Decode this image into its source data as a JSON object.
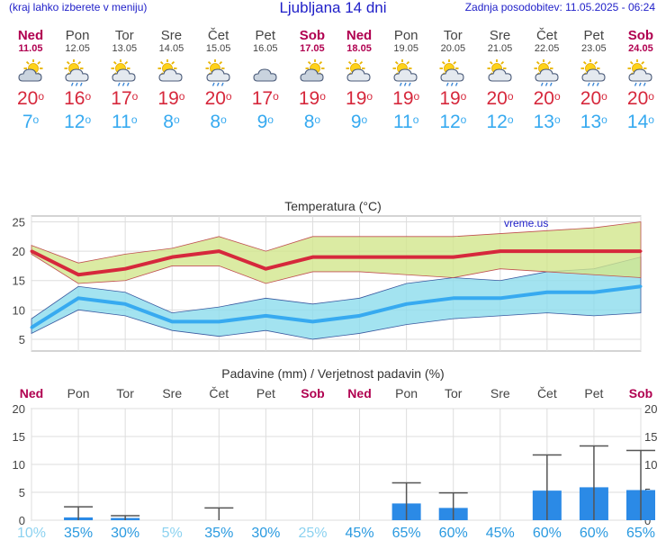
{
  "header": {
    "menu_hint": "(kraj lahko izberete v meniju)",
    "title": "Ljubljana 14 dni",
    "updated": "Zadnja posodobitev: 11.05.2025 - 06:24"
  },
  "colors": {
    "weekend": "#b00050",
    "max_temp": "#d6283c",
    "min_temp": "#37aaf0",
    "bar": "#2b8ae6",
    "max_band": "#d2e68c",
    "min_band": "#8cdcec"
  },
  "days": [
    {
      "name": "Ned",
      "date": "11.05",
      "weekend": true,
      "icon": "partly-cloudy-icon",
      "tmax": "20",
      "tmin": "7"
    },
    {
      "name": "Pon",
      "date": "12.05",
      "weekend": false,
      "icon": "sun-cloud-rain-icon",
      "tmax": "16",
      "tmin": "12"
    },
    {
      "name": "Tor",
      "date": "13.05",
      "weekend": false,
      "icon": "sun-cloud-rain-icon",
      "tmax": "17",
      "tmin": "11"
    },
    {
      "name": "Sre",
      "date": "14.05",
      "weekend": false,
      "icon": "sun-cloud-icon",
      "tmax": "19",
      "tmin": "8"
    },
    {
      "name": "Čet",
      "date": "15.05",
      "weekend": false,
      "icon": "sun-cloud-rain-icon",
      "tmax": "20",
      "tmin": "8"
    },
    {
      "name": "Pet",
      "date": "16.05",
      "weekend": false,
      "icon": "cloudy-icon",
      "tmax": "17",
      "tmin": "9"
    },
    {
      "name": "Sob",
      "date": "17.05",
      "weekend": true,
      "icon": "partly-cloudy-icon",
      "tmax": "19",
      "tmin": "8"
    },
    {
      "name": "Ned",
      "date": "18.05",
      "weekend": true,
      "icon": "sun-cloud-icon",
      "tmax": "19",
      "tmin": "9"
    },
    {
      "name": "Pon",
      "date": "19.05",
      "weekend": false,
      "icon": "sun-cloud-rain-icon",
      "tmax": "19",
      "tmin": "11"
    },
    {
      "name": "Tor",
      "date": "20.05",
      "weekend": false,
      "icon": "sun-cloud-rain-icon",
      "tmax": "19",
      "tmin": "12"
    },
    {
      "name": "Sre",
      "date": "21.05",
      "weekend": false,
      "icon": "sun-cloud-icon",
      "tmax": "20",
      "tmin": "12"
    },
    {
      "name": "Čet",
      "date": "22.05",
      "weekend": false,
      "icon": "sun-cloud-rain-icon",
      "tmax": "20",
      "tmin": "13"
    },
    {
      "name": "Pet",
      "date": "23.05",
      "weekend": false,
      "icon": "sun-cloud-rain-icon",
      "tmax": "20",
      "tmin": "13"
    },
    {
      "name": "Sob",
      "date": "24.05",
      "weekend": true,
      "icon": "sun-cloud-rain-icon",
      "tmax": "20",
      "tmin": "14"
    }
  ],
  "degree_symbol": "o",
  "chart_data": [
    {
      "type": "line",
      "title": "Temperatura (°C)",
      "watermark": "vreme.us",
      "ylim": [
        3,
        26
      ],
      "yticks": [
        5,
        10,
        15,
        20,
        25
      ],
      "x": [
        "11.05",
        "12.05",
        "13.05",
        "14.05",
        "15.05",
        "16.05",
        "17.05",
        "18.05",
        "19.05",
        "20.05",
        "21.05",
        "22.05",
        "23.05",
        "24.05"
      ],
      "series": [
        {
          "name": "max",
          "role": "max",
          "values": [
            20,
            16,
            17,
            19,
            20,
            17,
            19,
            19,
            19,
            19,
            20,
            20,
            20,
            20
          ],
          "band_high": [
            21,
            18,
            19.5,
            20.5,
            22.5,
            20,
            22.5,
            22.5,
            22.5,
            22.5,
            23,
            23.5,
            24,
            25
          ],
          "band_low": [
            19.5,
            14.5,
            15,
            17.5,
            17.5,
            14.5,
            16.5,
            16.5,
            16,
            15.5,
            17,
            16.5,
            16,
            15.5
          ]
        },
        {
          "name": "min",
          "role": "min",
          "values": [
            7,
            12,
            11,
            8,
            8,
            9,
            8,
            9,
            11,
            12,
            12,
            13,
            13,
            14
          ],
          "band_high": [
            8.5,
            14,
            13,
            9.5,
            10.5,
            12,
            11,
            12,
            14.5,
            15.5,
            15,
            16.5,
            17,
            19
          ],
          "band_low": [
            6,
            10,
            9,
            6.5,
            5.5,
            6.5,
            5,
            6,
            7.5,
            8.5,
            9,
            9.5,
            9,
            9.5
          ]
        }
      ],
      "grid": true
    },
    {
      "type": "bar",
      "title": "Padavine (mm) / Verjetnost padavin (%)",
      "ylim": [
        0,
        20
      ],
      "yticks": [
        0,
        5,
        10,
        15,
        20
      ],
      "day_labels": [
        "Ned",
        "Pon",
        "Tor",
        "Sre",
        "Čet",
        "Pet",
        "Sob",
        "Ned",
        "Pon",
        "Tor",
        "Sre",
        "Čet",
        "Pet",
        "Sob"
      ],
      "weekend": [
        true,
        false,
        false,
        false,
        false,
        false,
        true,
        true,
        false,
        false,
        false,
        false,
        false,
        true
      ],
      "values": [
        0,
        0.5,
        0.4,
        0,
        0,
        0,
        0,
        0,
        3,
        2.2,
        0,
        5.3,
        5.9,
        5.4
      ],
      "error_high": [
        0,
        2.4,
        0.8,
        0,
        2.2,
        0,
        0,
        0,
        6.7,
        4.9,
        0,
        11.7,
        13.3,
        12.5
      ],
      "probability": [
        "10%",
        "35%",
        "30%",
        "5%",
        "35%",
        "30%",
        "25%",
        "45%",
        "65%",
        "60%",
        "45%",
        "60%",
        "60%",
        "65%"
      ],
      "grid": true
    }
  ]
}
